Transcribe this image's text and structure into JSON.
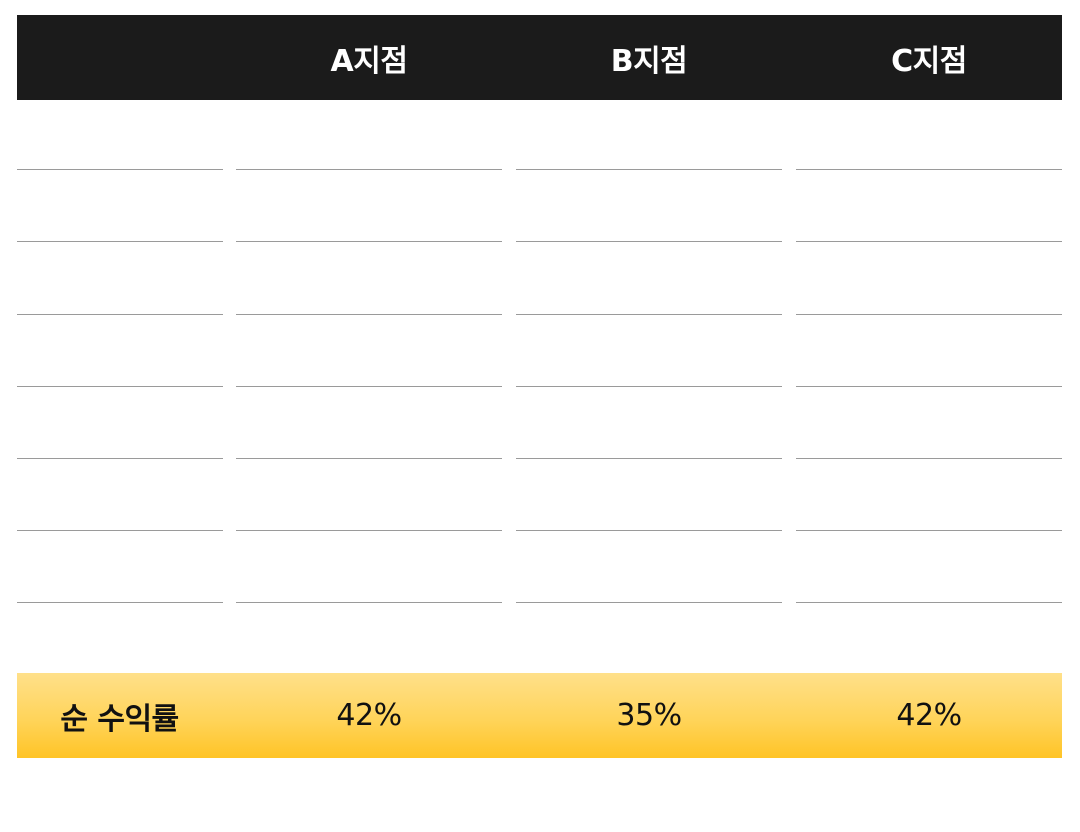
{
  "table": {
    "header": {
      "columns": [
        "",
        "A지점",
        "B지점",
        "C지점"
      ]
    },
    "body": {
      "row_count": 7,
      "rows": [
        [
          "",
          "",
          "",
          ""
        ],
        [
          "",
          "",
          "",
          ""
        ],
        [
          "",
          "",
          "",
          ""
        ],
        [
          "",
          "",
          "",
          ""
        ],
        [
          "",
          "",
          "",
          ""
        ],
        [
          "",
          "",
          "",
          ""
        ],
        [
          "",
          "",
          "",
          ""
        ]
      ]
    },
    "footer": {
      "label": "순 수익률",
      "values": [
        "42%",
        "35%",
        "42%"
      ]
    }
  },
  "colors": {
    "header_bg": "#1b1b1b",
    "header_text": "#ffffff",
    "divider": "#9a9a9a",
    "footer_gradient_top": "#ffe08a",
    "footer_gradient_bottom": "#ffc426",
    "footer_text": "#111111"
  }
}
